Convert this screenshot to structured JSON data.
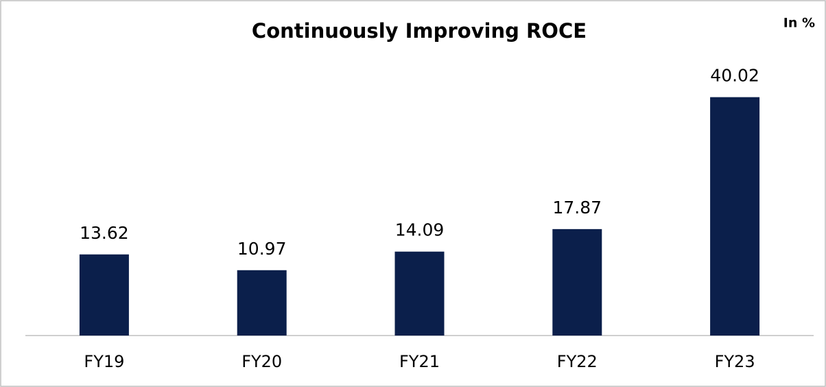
{
  "chart_data": {
    "type": "bar",
    "title": "Continuously Improving ROCE",
    "unit_label": "In %",
    "categories": [
      "FY19",
      "FY20",
      "FY21",
      "FY22",
      "FY23"
    ],
    "values": [
      13.62,
      10.97,
      14.09,
      17.87,
      40.02
    ],
    "color": "#0b1f4b",
    "ylim": [
      0,
      47
    ]
  }
}
